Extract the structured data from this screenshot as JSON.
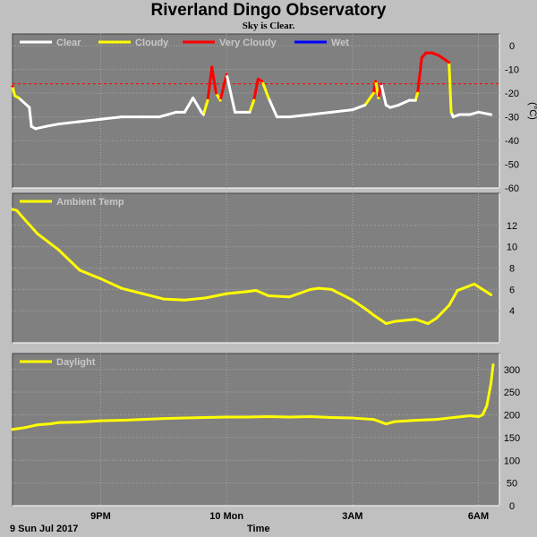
{
  "title": "Riverland Dingo Observatory",
  "subtitle": "Sky is Clear.",
  "date_label": "9 Sun Jul 2017",
  "colors": {
    "background": "#c0c0c0",
    "panel": "#808080",
    "grid": "#a8a8a8",
    "clear": "#ffffff",
    "cloudy": "#ffff00",
    "very_cloudy": "#ff0000",
    "wet": "#0000ff",
    "threshold": "#ff0000"
  },
  "chart_data": [
    {
      "type": "line",
      "name": "sky-temperature",
      "legend": [
        "Clear",
        "Cloudy",
        "Very Cloudy",
        "Wet"
      ],
      "ylabel": "(°C)",
      "ylim": [
        -60,
        5
      ],
      "yticks": [
        0,
        -10,
        -20,
        -30,
        -40,
        -50,
        -60
      ],
      "threshold": -16,
      "xlim": [
        18.9,
        30.5
      ],
      "x": [
        18.9,
        18.95,
        19.05,
        19.3,
        19.35,
        19.45,
        19.7,
        20.0,
        20.5,
        21.0,
        21.5,
        22.0,
        22.4,
        22.6,
        22.8,
        23.0,
        23.2,
        23.3,
        23.4,
        23.45,
        23.55,
        23.65,
        23.75,
        23.85,
        24.0,
        24.2,
        24.4,
        24.55,
        24.65,
        24.75,
        24.85,
        25.0,
        25.2,
        25.5,
        26.0,
        26.5,
        27.0,
        27.3,
        27.5,
        27.55,
        27.62,
        27.68,
        27.8,
        27.9,
        28.1,
        28.35,
        28.5,
        28.55,
        28.65,
        28.75,
        28.9,
        29.05,
        29.3,
        29.35,
        29.4,
        29.55,
        29.8,
        30.0,
        30.3
      ],
      "y": [
        -17,
        -21,
        -22,
        -26,
        -34,
        -35,
        -34,
        -33,
        -32,
        -31,
        -30,
        -30,
        -30,
        -29,
        -28,
        -28,
        -22,
        -25,
        -28,
        -29,
        -23,
        -9,
        -20,
        -23,
        -12,
        -28,
        -28,
        -28,
        -23,
        -14,
        -15,
        -22,
        -30,
        -30,
        -29,
        -28,
        -27,
        -25,
        -20,
        -15,
        -22,
        -16,
        -25,
        -26,
        -25,
        -23,
        -23,
        -20,
        -5,
        -3,
        -3,
        -4,
        -7,
        -28,
        -30,
        -29,
        -29,
        -28,
        -29
      ],
      "states": [
        "very_cloudy",
        "cloudy",
        "cloudy",
        "clear",
        "clear",
        "clear",
        "clear",
        "clear",
        "clear",
        "clear",
        "clear",
        "clear",
        "clear",
        "clear",
        "clear",
        "clear",
        "clear",
        "clear",
        "clear",
        "clear",
        "cloudy",
        "very_cloudy",
        "very_cloudy",
        "cloudy",
        "very_cloudy",
        "clear",
        "clear",
        "clear",
        "cloudy",
        "very_cloudy",
        "very_cloudy",
        "cloudy",
        "clear",
        "clear",
        "clear",
        "clear",
        "clear",
        "clear",
        "cloudy",
        "very_cloudy",
        "cloudy",
        "very_cloudy",
        "clear",
        "clear",
        "clear",
        "clear",
        "clear",
        "cloudy",
        "very_cloudy",
        "very_cloudy",
        "very_cloudy",
        "very_cloudy",
        "very_cloudy",
        "cloudy",
        "clear",
        "clear",
        "clear",
        "clear",
        "clear"
      ]
    },
    {
      "type": "line",
      "name": "ambient-temperature",
      "legend": [
        "Ambient Temp"
      ],
      "ylim": [
        1,
        15
      ],
      "yticks": [
        12,
        10,
        8,
        6,
        4
      ],
      "xlim": [
        18.9,
        30.5
      ],
      "x": [
        18.9,
        19.0,
        19.2,
        19.5,
        20.0,
        20.5,
        21.0,
        21.5,
        22.0,
        22.5,
        23.0,
        23.5,
        24.0,
        24.5,
        24.7,
        25.0,
        25.5,
        26.0,
        26.2,
        26.5,
        27.0,
        27.3,
        27.5,
        27.8,
        28.0,
        28.5,
        28.8,
        29.0,
        29.3,
        29.5,
        29.7,
        29.9,
        30.1,
        30.3
      ],
      "y": [
        13.5,
        13.4,
        12.5,
        11.2,
        9.7,
        7.8,
        7.0,
        6.1,
        5.6,
        5.1,
        5.0,
        5.2,
        5.6,
        5.8,
        5.9,
        5.4,
        5.3,
        6.0,
        6.1,
        6.0,
        5.0,
        4.2,
        3.6,
        2.8,
        3.0,
        3.2,
        2.8,
        3.3,
        4.5,
        5.9,
        6.2,
        6.5,
        6.0,
        5.5
      ]
    },
    {
      "type": "line",
      "name": "daylight",
      "legend": [
        "Daylight"
      ],
      "ylim": [
        0,
        335
      ],
      "yticks": [
        300,
        250,
        200,
        150,
        100,
        50,
        0
      ],
      "xlim": [
        18.9,
        30.5
      ],
      "x": [
        18.9,
        19.2,
        19.5,
        19.8,
        20.0,
        20.5,
        21.0,
        21.5,
        22.0,
        22.5,
        23.0,
        23.5,
        24.0,
        24.5,
        25.0,
        25.5,
        26.0,
        26.5,
        27.0,
        27.5,
        27.8,
        28.0,
        28.5,
        29.0,
        29.3,
        29.6,
        29.8,
        30.0,
        30.1,
        30.2,
        30.3,
        30.35
      ],
      "y": [
        168,
        172,
        178,
        180,
        183,
        184,
        187,
        188,
        190,
        192,
        193,
        194,
        195,
        195,
        196,
        195,
        196,
        194,
        193,
        190,
        180,
        185,
        188,
        190,
        193,
        196,
        198,
        196,
        200,
        220,
        270,
        310
      ]
    }
  ],
  "xaxis": {
    "label": "Time",
    "ticks": [
      {
        "x": 21,
        "label": "9PM"
      },
      {
        "x": 24,
        "label": "10 Mon"
      },
      {
        "x": 27,
        "label": "3AM"
      },
      {
        "x": 30,
        "label": "6AM"
      }
    ]
  }
}
